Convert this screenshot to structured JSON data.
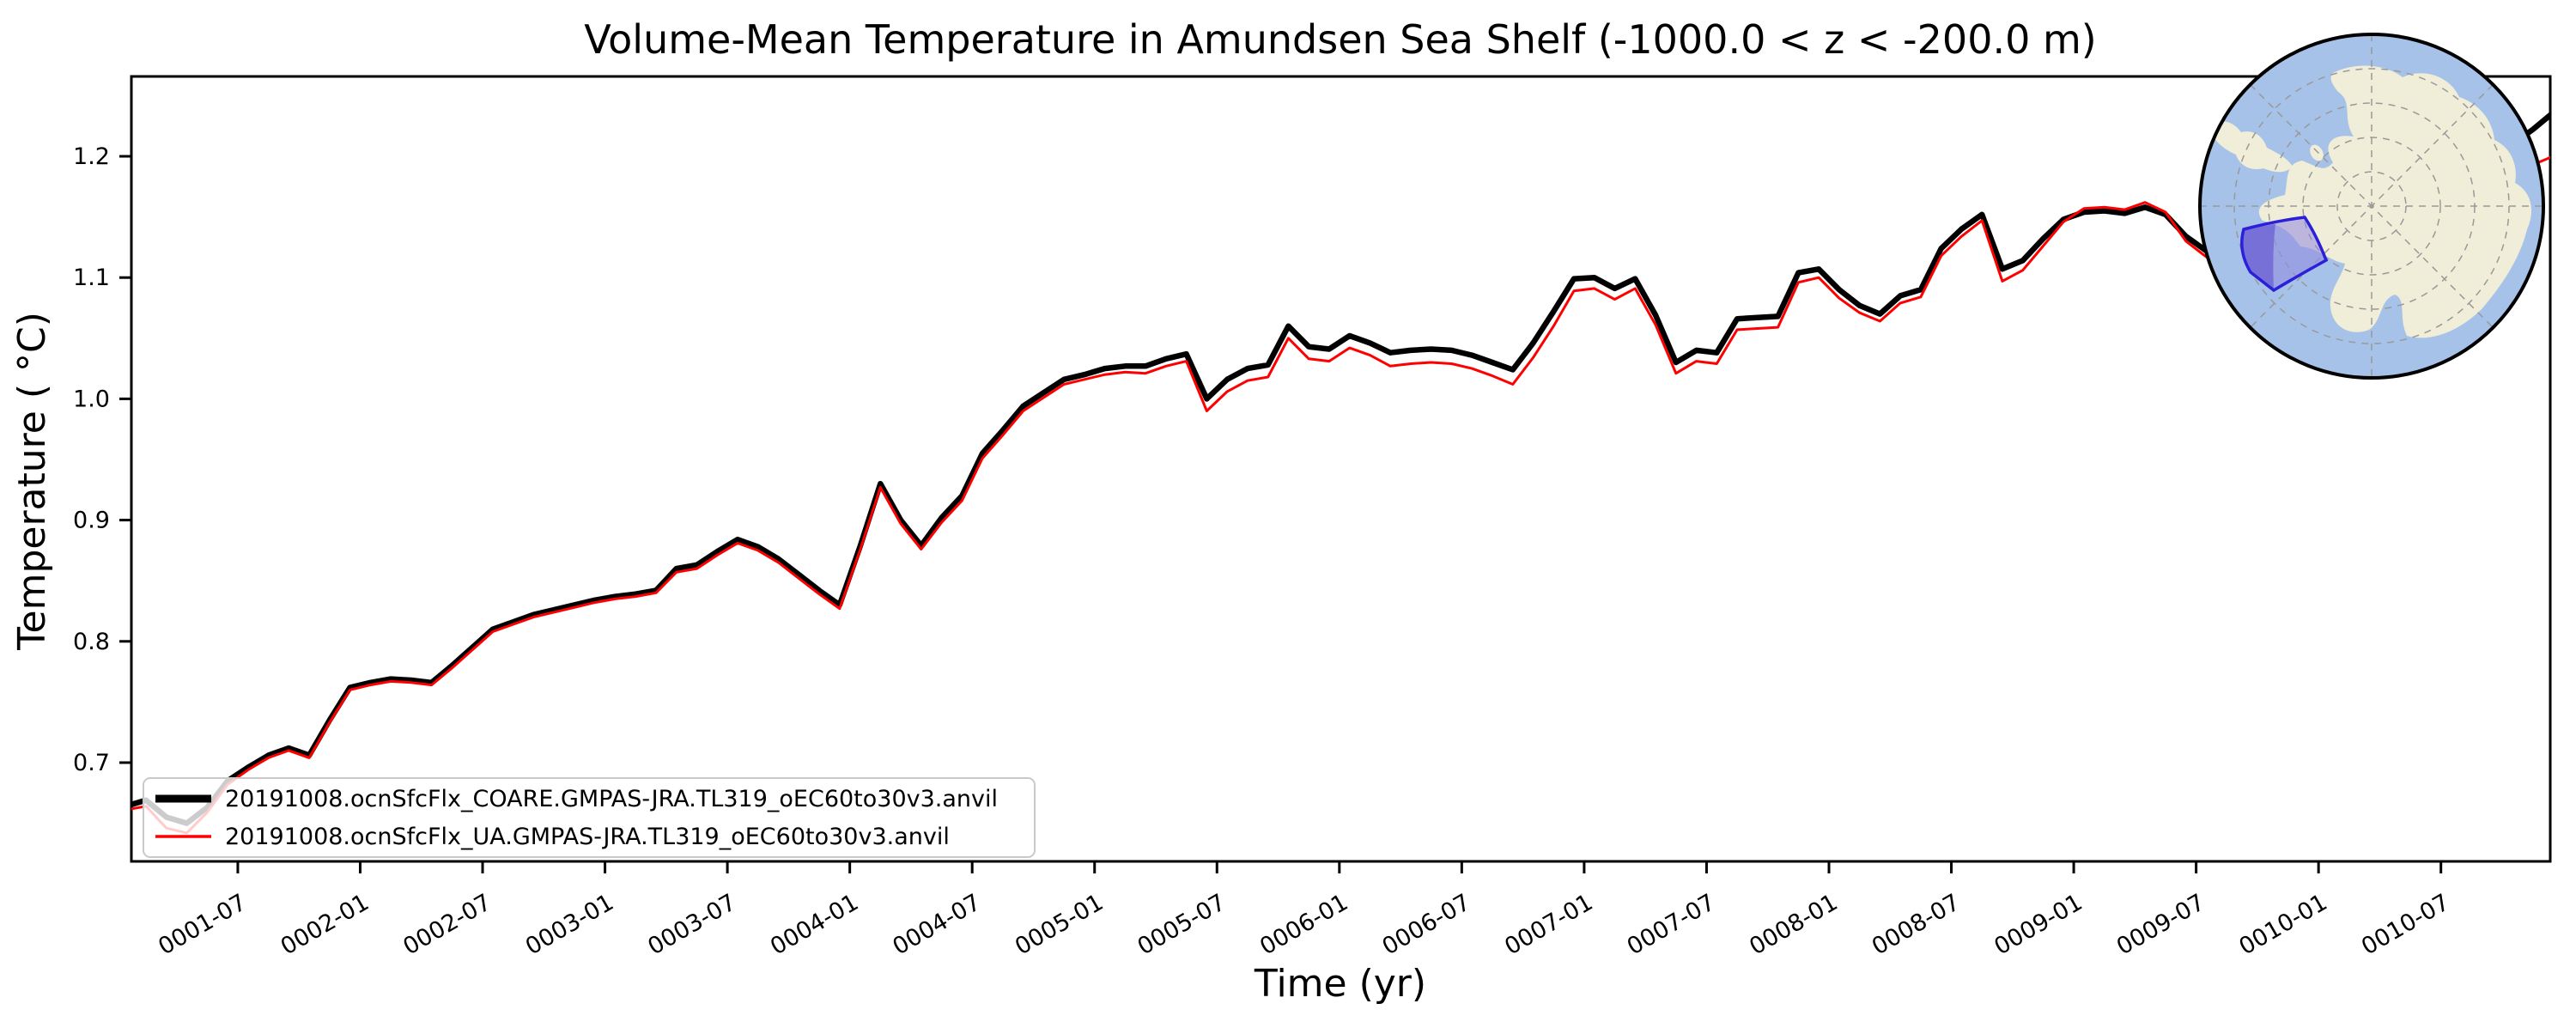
{
  "title": "Volume-Mean Temperature in Amundsen Sea Shelf (-1000.0 < z < -200.0 m)",
  "axes": {
    "xlabel": "Time (yr)",
    "ylabel": "Temperature ( °C)",
    "y_tick_labels": [
      "0.7",
      "0.8",
      "0.9",
      "1.0",
      "1.1",
      "1.2"
    ],
    "y_tick_values": [
      0.7,
      0.8,
      0.9,
      1.0,
      1.1,
      1.2
    ],
    "x_tick_labels": [
      "0001-07",
      "0002-01",
      "0002-07",
      "0003-01",
      "0003-07",
      "0004-01",
      "0004-07",
      "0005-01",
      "0005-07",
      "0006-01",
      "0006-07",
      "0007-01",
      "0007-07",
      "0008-01",
      "0008-07",
      "0009-01",
      "0009-07",
      "0010-01",
      "0010-07"
    ],
    "x_tick_months": [
      6,
      12,
      18,
      24,
      30,
      36,
      42,
      48,
      54,
      60,
      66,
      72,
      78,
      84,
      90,
      96,
      102,
      108,
      114
    ]
  },
  "legend": {
    "entries": [
      {
        "label": "20191008.ocnSfcFlx_COARE.GMPAS-JRA.TL319_oEC60to30v3.anvil",
        "color": "#000000",
        "linewidth": 9
      },
      {
        "label": "20191008.ocnSfcFlx_UA.GMPAS-JRA.TL319_oEC60to30v3.anvil",
        "color": "#ff0000",
        "linewidth": 3.5
      }
    ]
  },
  "chart_data": {
    "type": "line",
    "title": "Volume-Mean Temperature in Amundsen Sea Shelf (-1000.0 < z < -200.0 m)",
    "xlabel": "Time (yr)",
    "ylabel": "Temperature ( °C)",
    "ylim": [
      0.619,
      1.266
    ],
    "xlim_months": [
      "0001-01",
      "0010-12"
    ],
    "grid": false,
    "legend_position": "lower left",
    "x": [
      "0001-01",
      "0001-02",
      "0001-03",
      "0001-04",
      "0001-05",
      "0001-06",
      "0001-07",
      "0001-08",
      "0001-09",
      "0001-10",
      "0001-11",
      "0001-12",
      "0002-01",
      "0002-02",
      "0002-03",
      "0002-04",
      "0002-05",
      "0002-06",
      "0002-07",
      "0002-08",
      "0002-09",
      "0002-10",
      "0002-11",
      "0002-12",
      "0003-01",
      "0003-02",
      "0003-03",
      "0003-04",
      "0003-05",
      "0003-06",
      "0003-07",
      "0003-08",
      "0003-09",
      "0003-10",
      "0003-11",
      "0003-12",
      "0004-01",
      "0004-02",
      "0004-03",
      "0004-04",
      "0004-05",
      "0004-06",
      "0004-07",
      "0004-08",
      "0004-09",
      "0004-10",
      "0004-11",
      "0004-12",
      "0005-01",
      "0005-02",
      "0005-03",
      "0005-04",
      "0005-05",
      "0005-06",
      "0005-07",
      "0005-08",
      "0005-09",
      "0005-10",
      "0005-11",
      "0005-12",
      "0006-01",
      "0006-02",
      "0006-03",
      "0006-04",
      "0006-05",
      "0006-06",
      "0006-07",
      "0006-08",
      "0006-09",
      "0006-10",
      "0006-11",
      "0006-12",
      "0007-01",
      "0007-02",
      "0007-03",
      "0007-04",
      "0007-05",
      "0007-06",
      "0007-07",
      "0007-08",
      "0007-09",
      "0007-10",
      "0007-11",
      "0007-12",
      "0008-01",
      "0008-02",
      "0008-03",
      "0008-04",
      "0008-05",
      "0008-06",
      "0008-07",
      "0008-08",
      "0008-09",
      "0008-10",
      "0008-11",
      "0008-12",
      "0009-01",
      "0009-02",
      "0009-03",
      "0009-04",
      "0009-05",
      "0009-06",
      "0009-07",
      "0009-08",
      "0009-09",
      "0009-10",
      "0009-11",
      "0009-12",
      "0010-01",
      "0010-02",
      "0010-03",
      "0010-04",
      "0010-05",
      "0010-06",
      "0010-07",
      "0010-08",
      "0010-09",
      "0010-10",
      "0010-11",
      "0010-12"
    ],
    "series": [
      {
        "name": "20191008.ocnSfcFlx_COARE.GMPAS-JRA.TL319_oEC60to30v3.anvil",
        "color": "#000000",
        "linewidth": 6.5,
        "values": [
          0.664,
          0.669,
          0.655,
          0.65,
          0.663,
          0.685,
          0.696,
          0.706,
          0.712,
          0.706,
          0.735,
          0.762,
          0.766,
          0.769,
          0.768,
          0.766,
          0.78,
          0.795,
          0.81,
          0.816,
          0.822,
          0.826,
          0.83,
          0.834,
          0.837,
          0.839,
          0.842,
          0.86,
          0.863,
          0.874,
          0.884,
          0.878,
          0.868,
          0.855,
          0.842,
          0.83,
          0.878,
          0.93,
          0.9,
          0.879,
          0.902,
          0.92,
          0.955,
          0.974,
          0.994,
          1.005,
          1.016,
          1.02,
          1.025,
          1.027,
          1.027,
          1.033,
          1.037,
          1.0,
          1.016,
          1.025,
          1.028,
          1.06,
          1.043,
          1.041,
          1.052,
          1.046,
          1.038,
          1.04,
          1.041,
          1.04,
          1.036,
          1.03,
          1.024,
          1.046,
          1.072,
          1.099,
          1.1,
          1.091,
          1.099,
          1.069,
          1.03,
          1.04,
          1.038,
          1.066,
          1.067,
          1.068,
          1.104,
          1.107,
          1.09,
          1.077,
          1.07,
          1.085,
          1.09,
          1.124,
          1.14,
          1.152,
          1.107,
          1.114,
          1.132,
          1.148,
          1.154,
          1.155,
          1.153,
          1.158,
          1.152,
          1.134,
          1.122,
          1.137,
          1.15,
          1.162,
          1.174,
          1.182,
          1.186,
          1.19,
          1.193,
          1.196,
          1.199,
          1.197,
          1.202,
          1.207,
          1.213,
          1.21,
          1.222,
          1.236
        ]
      },
      {
        "name": "20191008.ocnSfcFlx_UA.GMPAS-JRA.TL319_oEC60to30v3.anvil",
        "color": "#ff0000",
        "linewidth": 3,
        "values": [
          0.661,
          0.664,
          0.646,
          0.642,
          0.659,
          0.682,
          0.694,
          0.704,
          0.71,
          0.704,
          0.733,
          0.76,
          0.764,
          0.767,
          0.766,
          0.764,
          0.778,
          0.793,
          0.808,
          0.814,
          0.82,
          0.824,
          0.828,
          0.832,
          0.835,
          0.837,
          0.84,
          0.857,
          0.86,
          0.871,
          0.881,
          0.875,
          0.865,
          0.852,
          0.839,
          0.827,
          0.875,
          0.927,
          0.897,
          0.876,
          0.898,
          0.916,
          0.951,
          0.97,
          0.99,
          1.001,
          1.012,
          1.016,
          1.02,
          1.022,
          1.021,
          1.027,
          1.031,
          0.99,
          1.006,
          1.015,
          1.018,
          1.05,
          1.033,
          1.031,
          1.042,
          1.036,
          1.027,
          1.029,
          1.03,
          1.029,
          1.025,
          1.019,
          1.012,
          1.034,
          1.06,
          1.089,
          1.091,
          1.082,
          1.091,
          1.061,
          1.021,
          1.031,
          1.029,
          1.057,
          1.058,
          1.059,
          1.096,
          1.1,
          1.083,
          1.071,
          1.064,
          1.079,
          1.084,
          1.118,
          1.134,
          1.147,
          1.097,
          1.106,
          1.126,
          1.146,
          1.157,
          1.158,
          1.156,
          1.162,
          1.154,
          1.13,
          1.117,
          1.132,
          1.146,
          1.158,
          1.17,
          1.178,
          1.181,
          1.184,
          1.187,
          1.19,
          1.192,
          1.19,
          1.194,
          1.198,
          1.201,
          1.187,
          1.193,
          1.2
        ]
      }
    ]
  },
  "inset_map": {
    "description": "south-polar-stereographic-map-with-amundsen-sea-shelf-region-highlighted",
    "colors": {
      "ocean": "#a7c2e8",
      "land": "#f0edd8",
      "graticule": "#999999",
      "region_fill": "#9188e0",
      "region_west_fill": "#4f47c9",
      "region_border": "#2b1fd9",
      "circle_border": "#000000"
    }
  }
}
